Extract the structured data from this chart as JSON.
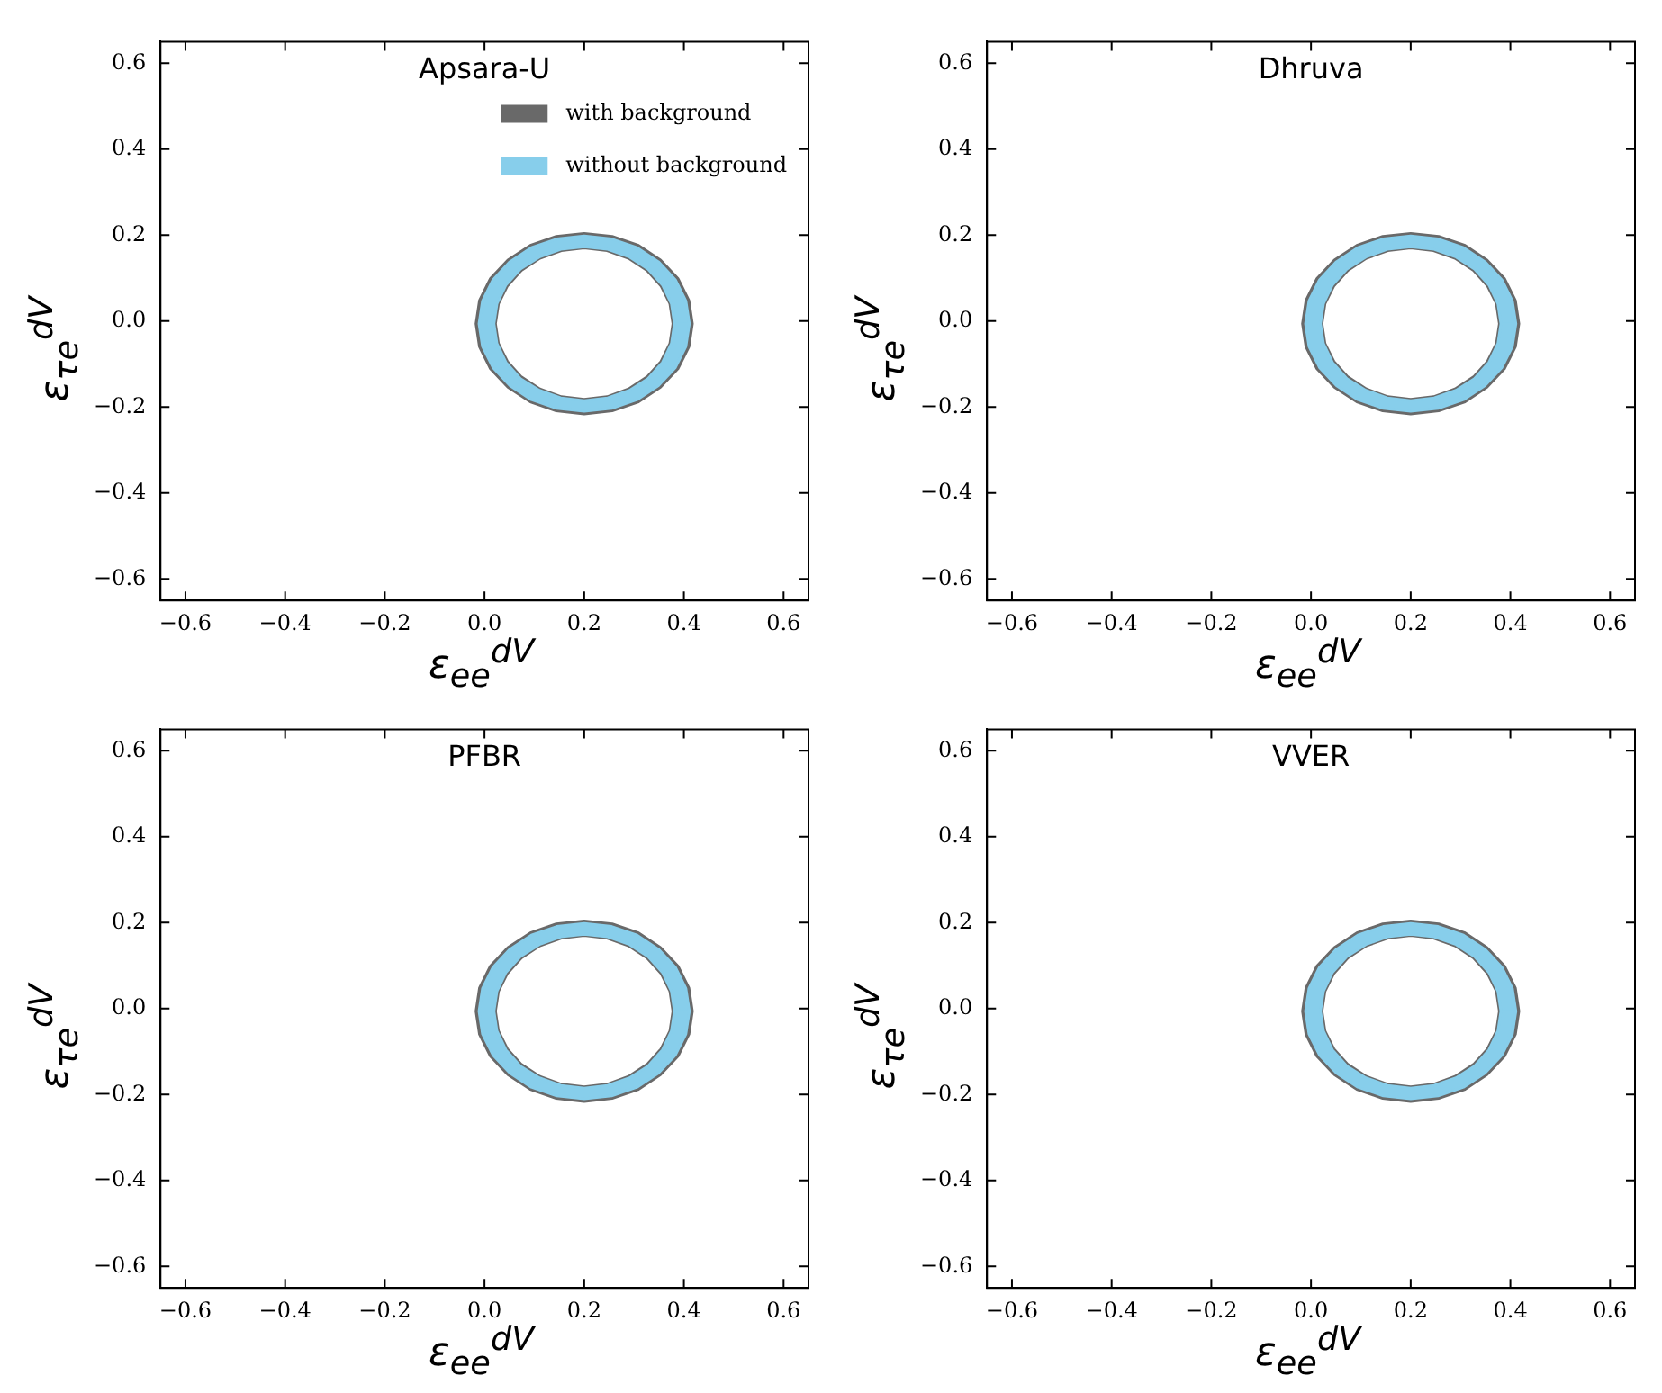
{
  "chart_data": [
    {
      "type": "area",
      "title": "Apsara-U",
      "xlabel": "ε$_{ee}$$^{dV}$",
      "ylabel": "ε$_{τe}$$^{dV}$",
      "xlim": [
        -0.65,
        0.65
      ],
      "ylim": [
        -0.65,
        0.65
      ],
      "xticks": [
        {
          "value": -0.6,
          "label": "−0.6"
        },
        {
          "value": -0.4,
          "label": "−0.4"
        },
        {
          "value": -0.2,
          "label": "−0.2"
        },
        {
          "value": 0,
          "label": "0.0"
        },
        {
          "value": 0.2,
          "label": "0.2"
        },
        {
          "value": 0.4,
          "label": "0.4"
        },
        {
          "value": 0.6,
          "label": "0.6"
        }
      ],
      "yticks": [
        {
          "value": -0.6,
          "label": "−0.6"
        },
        {
          "value": -0.4,
          "label": "−0.4"
        },
        {
          "value": -0.2,
          "label": "−0.2"
        },
        {
          "value": 0,
          "label": "0.0"
        },
        {
          "value": 0.2,
          "label": "0.2"
        },
        {
          "value": 0.4,
          "label": "0.4"
        },
        {
          "value": 0.6,
          "label": "0.6"
        }
      ],
      "legend": "top right",
      "series": [
        {
          "name": "with background",
          "color": "#696969",
          "x": [
            0.417,
            0.41,
            0.388,
            0.353,
            0.309,
            0.256,
            0.2,
            0.144,
            0.092,
            0.047,
            0.012,
            -0.01,
            -0.017,
            -0.01,
            0.012,
            0.047,
            0.092,
            0.144,
            0.2,
            0.256,
            0.309,
            0.353,
            0.388,
            0.41,
            0.417,
            0.378,
            0.372,
            0.354,
            0.326,
            0.289,
            0.246,
            0.2,
            0.154,
            0.111,
            0.074,
            0.046,
            0.028,
            0.022,
            0.028,
            0.046,
            0.074,
            0.111,
            0.154,
            0.2,
            0.246,
            0.289,
            0.326,
            0.354,
            0.372,
            0.378,
            0.417
          ],
          "values": [
            -0.006,
            0.048,
            0.099,
            0.142,
            0.176,
            0.197,
            0.204,
            0.197,
            0.176,
            0.142,
            0.099,
            0.048,
            -0.006,
            -0.06,
            -0.111,
            -0.154,
            -0.188,
            -0.209,
            -0.216,
            -0.209,
            -0.188,
            -0.154,
            -0.111,
            -0.06,
            -0.006,
            -0.006,
            -0.052,
            -0.094,
            -0.13,
            -0.158,
            -0.176,
            -0.182,
            -0.176,
            -0.158,
            -0.13,
            -0.094,
            -0.052,
            -0.006,
            0.04,
            0.082,
            0.118,
            0.146,
            0.164,
            0.17,
            0.164,
            0.146,
            0.118,
            0.082,
            0.04,
            -0.006,
            -0.006
          ]
        },
        {
          "name": "without background",
          "color": "#87ceeb",
          "x": [
            0.411,
            0.404,
            0.383,
            0.349,
            0.306,
            0.255,
            0.2,
            0.145,
            0.094,
            0.051,
            0.017,
            -0.004,
            -0.011,
            -0.004,
            0.017,
            0.051,
            0.094,
            0.145,
            0.2,
            0.255,
            0.306,
            0.349,
            0.383,
            0.404,
            0.411,
            0.381,
            0.375,
            0.357,
            0.328,
            0.291,
            0.247,
            0.2,
            0.153,
            0.11,
            0.072,
            0.043,
            0.025,
            0.019,
            0.025,
            0.043,
            0.072,
            0.11,
            0.153,
            0.2,
            0.247,
            0.291,
            0.328,
            0.357,
            0.375,
            0.381,
            0.411
          ],
          "values": [
            -0.006,
            0.047,
            0.096,
            0.138,
            0.171,
            0.191,
            0.198,
            0.191,
            0.171,
            0.138,
            0.096,
            0.047,
            -0.006,
            -0.059,
            -0.108,
            -0.15,
            -0.183,
            -0.203,
            -0.21,
            -0.203,
            -0.183,
            -0.15,
            -0.108,
            -0.059,
            -0.006,
            -0.006,
            -0.052,
            -0.096,
            -0.134,
            -0.161,
            -0.179,
            -0.185,
            -0.179,
            -0.161,
            -0.134,
            -0.096,
            -0.052,
            -0.006,
            0.04,
            0.084,
            0.121,
            0.149,
            0.167,
            0.173,
            0.167,
            0.149,
            0.121,
            0.084,
            0.04,
            -0.006,
            -0.006
          ]
        }
      ]
    },
    {
      "type": "area",
      "title": "Dhruva",
      "xlabel": "ε$_{ee}$$^{dV}$",
      "ylabel": "ε$_{τe}$$^{dV}$",
      "xlim": [
        -0.65,
        0.65
      ],
      "ylim": [
        -0.65,
        0.65
      ],
      "xticks": [
        {
          "value": -0.6,
          "label": "−0.6"
        },
        {
          "value": -0.4,
          "label": "−0.4"
        },
        {
          "value": -0.2,
          "label": "−0.2"
        },
        {
          "value": 0,
          "label": "0.0"
        },
        {
          "value": 0.2,
          "label": "0.2"
        },
        {
          "value": 0.4,
          "label": "0.4"
        },
        {
          "value": 0.6,
          "label": "0.6"
        }
      ],
      "yticks": [
        {
          "value": -0.6,
          "label": "−0.6"
        },
        {
          "value": -0.4,
          "label": "−0.4"
        },
        {
          "value": -0.2,
          "label": "−0.2"
        },
        {
          "value": 0,
          "label": "0.0"
        },
        {
          "value": 0.2,
          "label": "0.2"
        },
        {
          "value": 0.4,
          "label": "0.4"
        },
        {
          "value": 0.6,
          "label": "0.6"
        }
      ],
      "series": [
        {
          "color": "#696969",
          "x": [
            0.417,
            0.41,
            0.388,
            0.353,
            0.309,
            0.256,
            0.2,
            0.144,
            0.092,
            0.047,
            0.012,
            -0.01,
            -0.017,
            -0.01,
            0.012,
            0.047,
            0.092,
            0.144,
            0.2,
            0.256,
            0.309,
            0.353,
            0.388,
            0.41,
            0.417,
            0.378,
            0.372,
            0.354,
            0.326,
            0.289,
            0.246,
            0.2,
            0.154,
            0.111,
            0.074,
            0.046,
            0.028,
            0.022,
            0.028,
            0.046,
            0.074,
            0.111,
            0.154,
            0.2,
            0.246,
            0.289,
            0.326,
            0.354,
            0.372,
            0.378,
            0.417
          ],
          "values": [
            -0.006,
            0.048,
            0.099,
            0.142,
            0.176,
            0.197,
            0.204,
            0.197,
            0.176,
            0.142,
            0.099,
            0.048,
            -0.006,
            -0.06,
            -0.111,
            -0.154,
            -0.188,
            -0.209,
            -0.216,
            -0.209,
            -0.188,
            -0.154,
            -0.111,
            -0.06,
            -0.006,
            -0.006,
            -0.052,
            -0.094,
            -0.13,
            -0.158,
            -0.176,
            -0.182,
            -0.176,
            -0.158,
            -0.13,
            -0.094,
            -0.052,
            -0.006,
            0.04,
            0.082,
            0.118,
            0.146,
            0.164,
            0.17,
            0.164,
            0.146,
            0.118,
            0.082,
            0.04,
            -0.006,
            -0.006
          ]
        },
        {
          "color": "#87ceeb",
          "x": [
            0.411,
            0.404,
            0.383,
            0.349,
            0.306,
            0.255,
            0.2,
            0.145,
            0.094,
            0.051,
            0.017,
            -0.004,
            -0.011,
            -0.004,
            0.017,
            0.051,
            0.094,
            0.145,
            0.2,
            0.255,
            0.306,
            0.349,
            0.383,
            0.404,
            0.411,
            0.381,
            0.375,
            0.357,
            0.328,
            0.291,
            0.247,
            0.2,
            0.153,
            0.11,
            0.072,
            0.043,
            0.025,
            0.019,
            0.025,
            0.043,
            0.072,
            0.11,
            0.153,
            0.2,
            0.247,
            0.291,
            0.328,
            0.357,
            0.375,
            0.381,
            0.411
          ],
          "values": [
            -0.006,
            0.047,
            0.096,
            0.138,
            0.171,
            0.191,
            0.198,
            0.191,
            0.171,
            0.138,
            0.096,
            0.047,
            -0.006,
            -0.059,
            -0.108,
            -0.15,
            -0.183,
            -0.203,
            -0.21,
            -0.203,
            -0.183,
            -0.15,
            -0.108,
            -0.059,
            -0.006,
            -0.006,
            -0.052,
            -0.096,
            -0.134,
            -0.161,
            -0.179,
            -0.185,
            -0.179,
            -0.161,
            -0.134,
            -0.096,
            -0.052,
            -0.006,
            0.04,
            0.084,
            0.121,
            0.149,
            0.167,
            0.173,
            0.167,
            0.149,
            0.121,
            0.084,
            0.04,
            -0.006,
            -0.006
          ]
        }
      ]
    },
    {
      "type": "area",
      "title": "PFBR",
      "xlabel": "ε$_{ee}$$^{dV}$",
      "ylabel": "ε$_{τe}$$^{dV}$",
      "xlim": [
        -0.65,
        0.65
      ],
      "ylim": [
        -0.65,
        0.65
      ],
      "xticks": [
        {
          "value": -0.6,
          "label": "−0.6"
        },
        {
          "value": -0.4,
          "label": "−0.4"
        },
        {
          "value": -0.2,
          "label": "−0.2"
        },
        {
          "value": 0,
          "label": "0.0"
        },
        {
          "value": 0.2,
          "label": "0.2"
        },
        {
          "value": 0.4,
          "label": "0.4"
        },
        {
          "value": 0.6,
          "label": "0.6"
        }
      ],
      "yticks": [
        {
          "value": -0.6,
          "label": "−0.6"
        },
        {
          "value": -0.4,
          "label": "−0.4"
        },
        {
          "value": -0.2,
          "label": "−0.2"
        },
        {
          "value": 0,
          "label": "0.0"
        },
        {
          "value": 0.2,
          "label": "0.2"
        },
        {
          "value": 0.4,
          "label": "0.4"
        },
        {
          "value": 0.6,
          "label": "0.6"
        }
      ],
      "series": [
        {
          "color": "#696969",
          "x": [
            0.417,
            0.41,
            0.388,
            0.353,
            0.309,
            0.256,
            0.2,
            0.144,
            0.092,
            0.047,
            0.012,
            -0.01,
            -0.017,
            -0.01,
            0.012,
            0.047,
            0.092,
            0.144,
            0.2,
            0.256,
            0.309,
            0.353,
            0.388,
            0.41,
            0.417,
            0.378,
            0.372,
            0.354,
            0.326,
            0.289,
            0.246,
            0.2,
            0.154,
            0.111,
            0.074,
            0.046,
            0.028,
            0.022,
            0.028,
            0.046,
            0.074,
            0.111,
            0.154,
            0.2,
            0.246,
            0.289,
            0.326,
            0.354,
            0.372,
            0.378,
            0.417
          ],
          "values": [
            -0.006,
            0.048,
            0.099,
            0.142,
            0.176,
            0.197,
            0.204,
            0.197,
            0.176,
            0.142,
            0.099,
            0.048,
            -0.006,
            -0.06,
            -0.111,
            -0.154,
            -0.188,
            -0.209,
            -0.216,
            -0.209,
            -0.188,
            -0.154,
            -0.111,
            -0.06,
            -0.006,
            -0.006,
            -0.052,
            -0.094,
            -0.13,
            -0.158,
            -0.176,
            -0.182,
            -0.176,
            -0.158,
            -0.13,
            -0.094,
            -0.052,
            -0.006,
            0.04,
            0.082,
            0.118,
            0.146,
            0.164,
            0.17,
            0.164,
            0.146,
            0.118,
            0.082,
            0.04,
            -0.006,
            -0.006
          ]
        },
        {
          "color": "#87ceeb",
          "x": [
            0.411,
            0.404,
            0.383,
            0.349,
            0.306,
            0.255,
            0.2,
            0.145,
            0.094,
            0.051,
            0.017,
            -0.004,
            -0.011,
            -0.004,
            0.017,
            0.051,
            0.094,
            0.145,
            0.2,
            0.255,
            0.306,
            0.349,
            0.383,
            0.404,
            0.411,
            0.381,
            0.375,
            0.357,
            0.328,
            0.291,
            0.247,
            0.2,
            0.153,
            0.11,
            0.072,
            0.043,
            0.025,
            0.019,
            0.025,
            0.043,
            0.072,
            0.11,
            0.153,
            0.2,
            0.247,
            0.291,
            0.328,
            0.357,
            0.375,
            0.381,
            0.411
          ],
          "values": [
            -0.006,
            0.047,
            0.096,
            0.138,
            0.171,
            0.191,
            0.198,
            0.191,
            0.171,
            0.138,
            0.096,
            0.047,
            -0.006,
            -0.059,
            -0.108,
            -0.15,
            -0.183,
            -0.203,
            -0.21,
            -0.203,
            -0.183,
            -0.15,
            -0.108,
            -0.059,
            -0.006,
            -0.006,
            -0.052,
            -0.096,
            -0.134,
            -0.161,
            -0.179,
            -0.185,
            -0.179,
            -0.161,
            -0.134,
            -0.096,
            -0.052,
            -0.006,
            0.04,
            0.084,
            0.121,
            0.149,
            0.167,
            0.173,
            0.167,
            0.149,
            0.121,
            0.084,
            0.04,
            -0.006,
            -0.006
          ]
        }
      ]
    },
    {
      "type": "area",
      "title": "VVER",
      "xlabel": "ε$_{ee}$$^{dV}$",
      "ylabel": "ε$_{τe}$$^{dV}$",
      "xlim": [
        -0.65,
        0.65
      ],
      "ylim": [
        -0.65,
        0.65
      ],
      "xticks": [
        {
          "value": -0.6,
          "label": "−0.6"
        },
        {
          "value": -0.4,
          "label": "−0.4"
        },
        {
          "value": -0.2,
          "label": "−0.2"
        },
        {
          "value": 0,
          "label": "0.0"
        },
        {
          "value": 0.2,
          "label": "0.2"
        },
        {
          "value": 0.4,
          "label": "0.4"
        },
        {
          "value": 0.6,
          "label": "0.6"
        }
      ],
      "yticks": [
        {
          "value": -0.6,
          "label": "−0.6"
        },
        {
          "value": -0.4,
          "label": "−0.4"
        },
        {
          "value": -0.2,
          "label": "−0.2"
        },
        {
          "value": 0,
          "label": "0.0"
        },
        {
          "value": 0.2,
          "label": "0.2"
        },
        {
          "value": 0.4,
          "label": "0.4"
        },
        {
          "value": 0.6,
          "label": "0.6"
        }
      ],
      "series": [
        {
          "color": "#696969",
          "x": [
            0.417,
            0.41,
            0.388,
            0.353,
            0.309,
            0.256,
            0.2,
            0.144,
            0.092,
            0.047,
            0.012,
            -0.01,
            -0.017,
            -0.01,
            0.012,
            0.047,
            0.092,
            0.144,
            0.2,
            0.256,
            0.309,
            0.353,
            0.388,
            0.41,
            0.417,
            0.378,
            0.372,
            0.354,
            0.326,
            0.289,
            0.246,
            0.2,
            0.154,
            0.111,
            0.074,
            0.046,
            0.028,
            0.022,
            0.028,
            0.046,
            0.074,
            0.111,
            0.154,
            0.2,
            0.246,
            0.289,
            0.326,
            0.354,
            0.372,
            0.378,
            0.417
          ],
          "values": [
            -0.006,
            0.048,
            0.099,
            0.142,
            0.176,
            0.197,
            0.204,
            0.197,
            0.176,
            0.142,
            0.099,
            0.048,
            -0.006,
            -0.06,
            -0.111,
            -0.154,
            -0.188,
            -0.209,
            -0.216,
            -0.209,
            -0.188,
            -0.154,
            -0.111,
            -0.06,
            -0.006,
            -0.006,
            -0.052,
            -0.094,
            -0.13,
            -0.158,
            -0.176,
            -0.182,
            -0.176,
            -0.158,
            -0.13,
            -0.094,
            -0.052,
            -0.006,
            0.04,
            0.082,
            0.118,
            0.146,
            0.164,
            0.17,
            0.164,
            0.146,
            0.118,
            0.082,
            0.04,
            -0.006,
            -0.006
          ]
        },
        {
          "color": "#87ceeb",
          "x": [
            0.411,
            0.404,
            0.383,
            0.349,
            0.306,
            0.255,
            0.2,
            0.145,
            0.094,
            0.051,
            0.017,
            -0.004,
            -0.011,
            -0.004,
            0.017,
            0.051,
            0.094,
            0.145,
            0.2,
            0.255,
            0.306,
            0.349,
            0.383,
            0.404,
            0.411,
            0.381,
            0.375,
            0.357,
            0.328,
            0.291,
            0.247,
            0.2,
            0.153,
            0.11,
            0.072,
            0.043,
            0.025,
            0.019,
            0.025,
            0.043,
            0.072,
            0.11,
            0.153,
            0.2,
            0.247,
            0.291,
            0.328,
            0.357,
            0.375,
            0.381,
            0.411
          ],
          "values": [
            -0.006,
            0.047,
            0.096,
            0.138,
            0.171,
            0.191,
            0.198,
            0.191,
            0.171,
            0.138,
            0.096,
            0.047,
            -0.006,
            -0.059,
            -0.108,
            -0.15,
            -0.183,
            -0.203,
            -0.21,
            -0.203,
            -0.183,
            -0.15,
            -0.108,
            -0.059,
            -0.006,
            -0.006,
            -0.052,
            -0.096,
            -0.134,
            -0.161,
            -0.179,
            -0.185,
            -0.179,
            -0.161,
            -0.134,
            -0.096,
            -0.052,
            -0.006,
            0.04,
            0.084,
            0.121,
            0.149,
            0.167,
            0.173,
            0.167,
            0.149,
            0.121,
            0.084,
            0.04,
            -0.006,
            -0.006
          ]
        }
      ]
    }
  ]
}
